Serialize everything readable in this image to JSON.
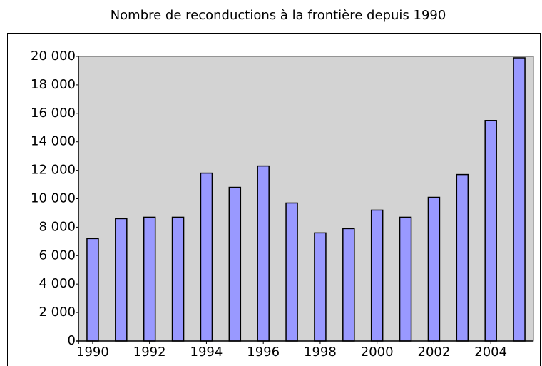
{
  "chart_data": {
    "type": "bar",
    "title": "Nombre de reconductions à la frontière depuis 1990",
    "x": [
      1990,
      1991,
      1992,
      1993,
      1994,
      1995,
      1996,
      1997,
      1998,
      1999,
      2000,
      2001,
      2002,
      2003,
      2004,
      2005
    ],
    "values": [
      7200,
      8600,
      8700,
      8700,
      11800,
      10800,
      12300,
      9700,
      7600,
      7900,
      9200,
      8700,
      10100,
      11700,
      15500,
      19900
    ],
    "color": "#9999ff",
    "xlim": [
      1989.5,
      2005.5
    ],
    "xticks": [
      1990,
      1992,
      1994,
      1996,
      1998,
      2000,
      2002,
      2004
    ],
    "ylim": [
      0,
      20000
    ],
    "yticks": [
      0,
      {
        "value": 2000,
        "label": "2 000"
      },
      {
        "value": 4000,
        "label": "4 000"
      },
      {
        "value": 6000,
        "label": "6 000"
      },
      {
        "value": 8000,
        "label": "8 000"
      },
      {
        "value": 10000,
        "label": "10 000"
      },
      {
        "value": 12000,
        "label": "12 000"
      },
      {
        "value": 14000,
        "label": "14 000"
      },
      {
        "value": 16000,
        "label": "16 000"
      },
      {
        "value": 18000,
        "label": "18 000"
      },
      {
        "value": 20000,
        "label": "20 000"
      }
    ]
  }
}
